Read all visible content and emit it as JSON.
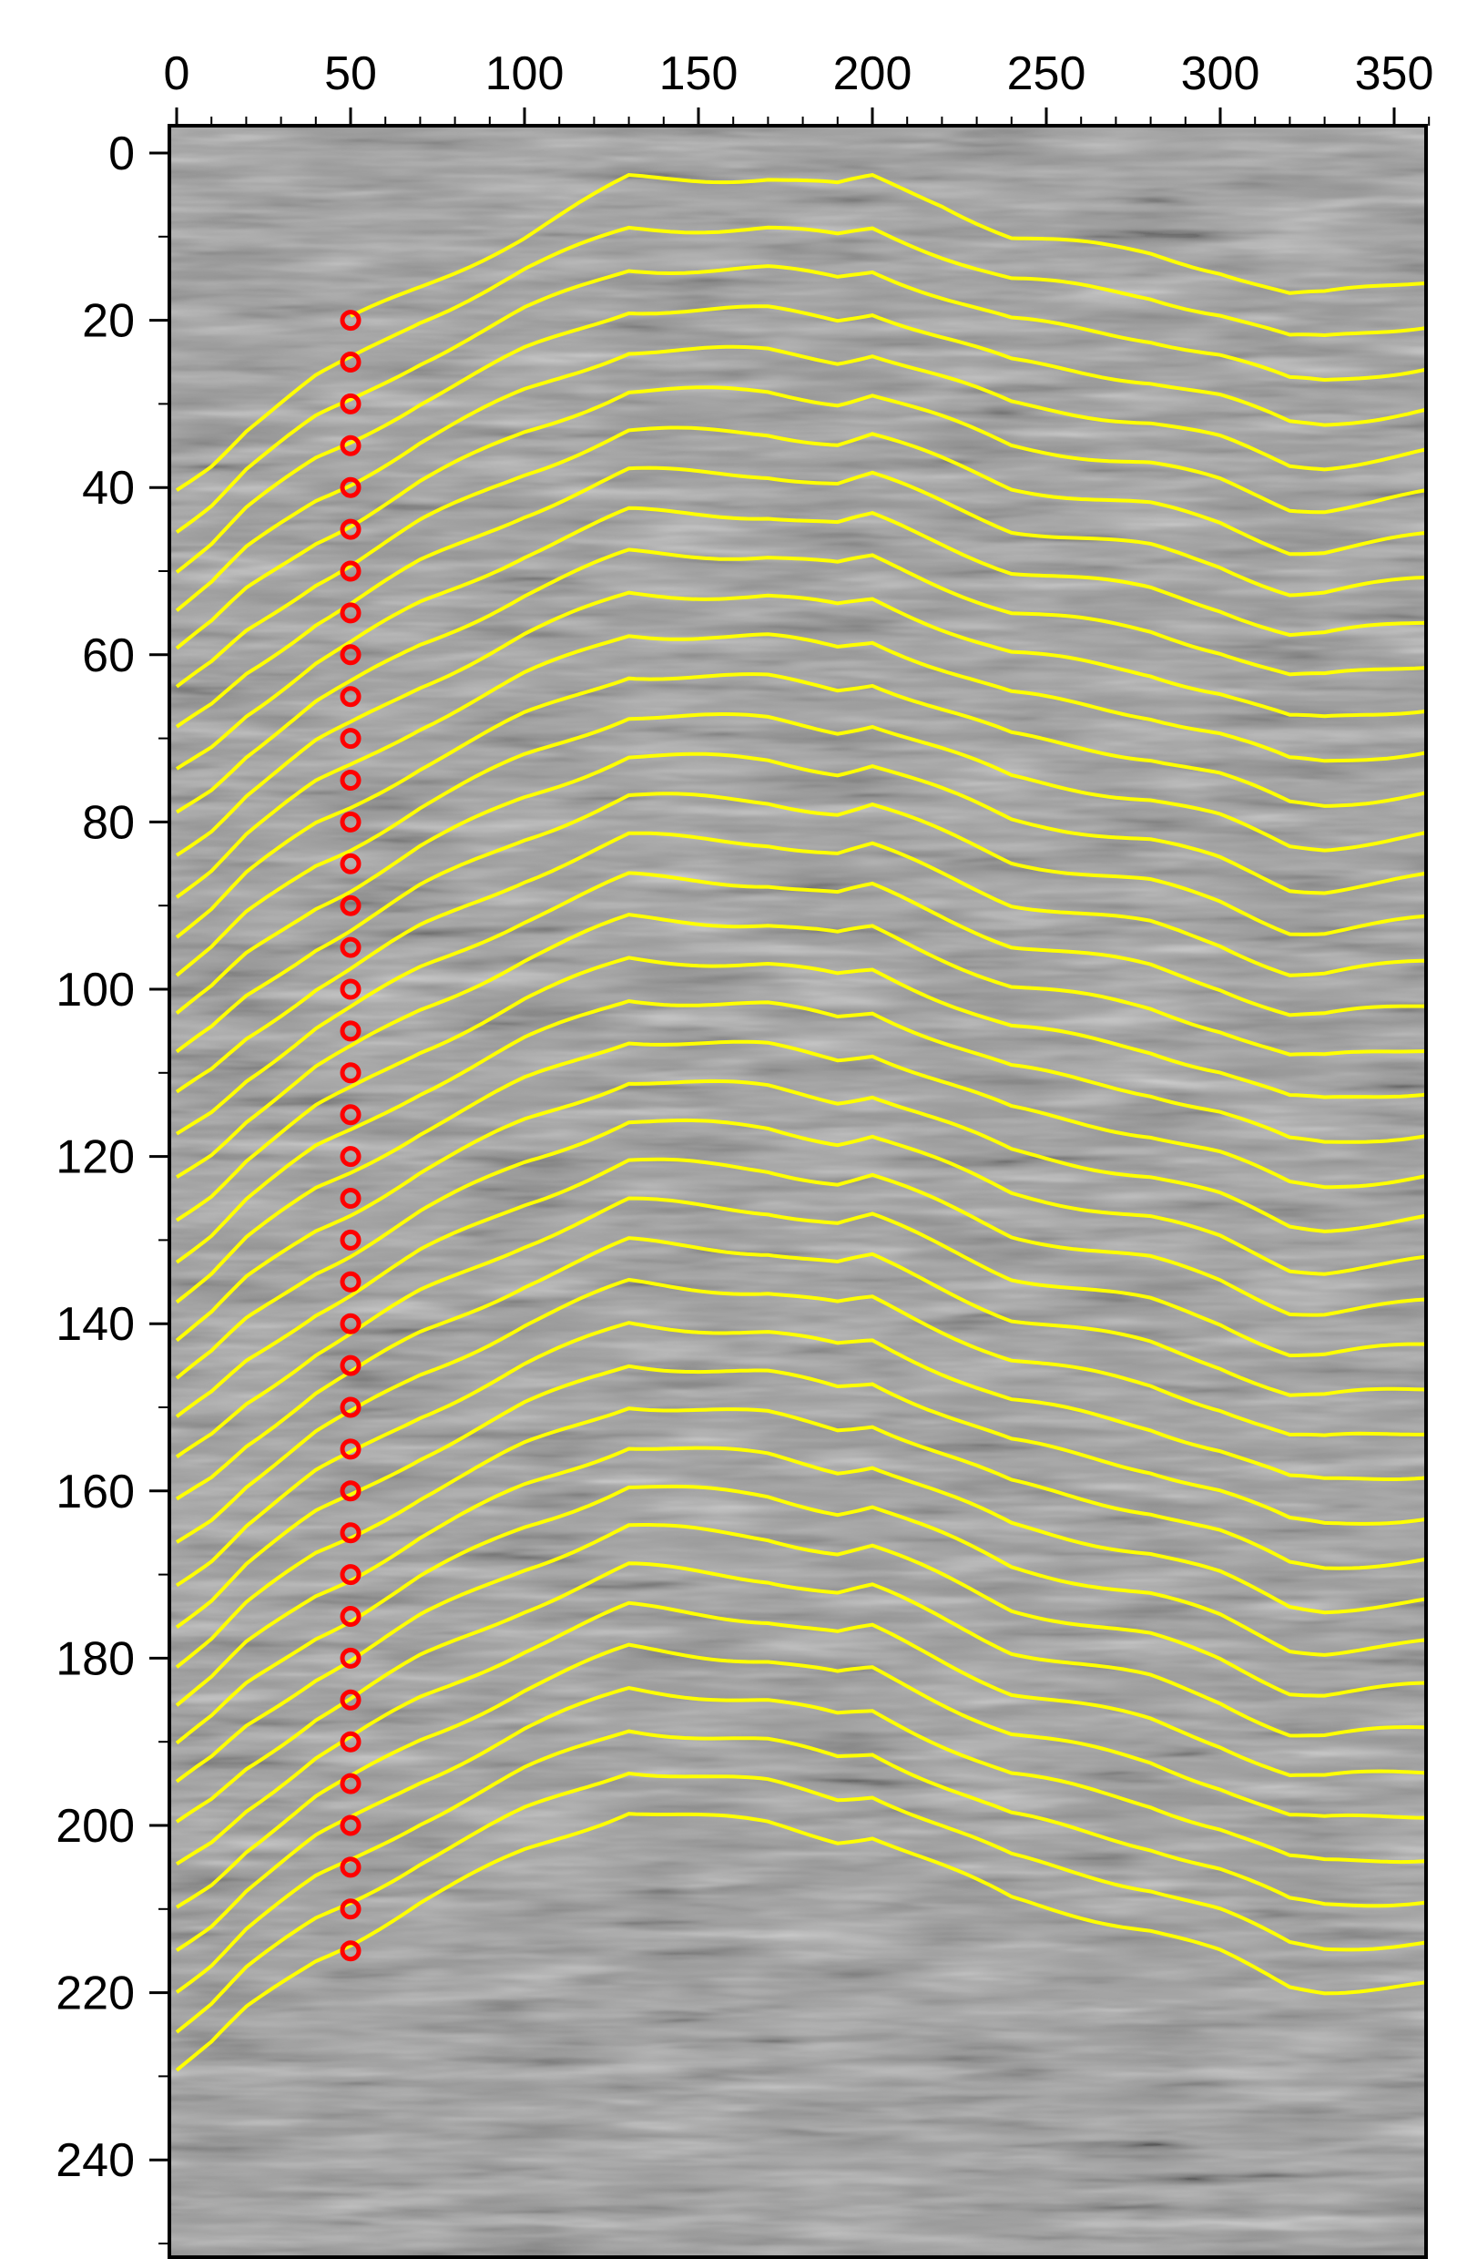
{
  "chart_data": {
    "type": "line",
    "title": "",
    "xlabel": "",
    "ylabel": "",
    "xlim": [
      0,
      362
    ],
    "ylim": [
      250,
      -3
    ],
    "x_ticks": [
      0,
      50,
      100,
      150,
      200,
      250,
      300,
      350
    ],
    "x_tick_labels": [
      "0",
      "50",
      "100",
      "150",
      "200",
      "250",
      "300",
      "350"
    ],
    "y_ticks": [
      0,
      20,
      40,
      60,
      80,
      100,
      120,
      140,
      160,
      180,
      200,
      220,
      240
    ],
    "y_tick_labels": [
      "0",
      "20",
      "40",
      "60",
      "80",
      "100",
      "120",
      "140",
      "160",
      "180",
      "200",
      "220",
      "240"
    ],
    "x_minor_step": 10,
    "y_minor_step": 10,
    "background": "grayscale seismic amplitude image",
    "series": [
      {
        "kind": "horizon",
        "x": [
          50,
          70,
          100,
          130,
          150,
          170,
          190,
          200,
          220,
          240,
          260,
          280,
          300,
          320,
          330,
          362
        ],
        "y": [
          20,
          16,
          10,
          3,
          3,
          3,
          4,
          3,
          6,
          10,
          11,
          12,
          14,
          17,
          17,
          15
        ]
      },
      {
        "kind": "horizon",
        "x": [
          0,
          10,
          20,
          30,
          40,
          50,
          70,
          100,
          130,
          150,
          170,
          190,
          200,
          220,
          240,
          260,
          280,
          300,
          320,
          330,
          362
        ],
        "y": [
          40,
          37,
          33,
          30,
          27,
          24.8,
          20,
          14,
          9,
          9,
          9,
          10,
          9,
          12,
          15,
          16,
          17,
          19,
          22,
          22,
          20
        ]
      },
      {
        "kind": "horizon",
        "start": 0,
        "x_y0": 44,
        "shift": 4.85
      },
      {
        "kind": "reference_points",
        "x": 50,
        "y_start": 20,
        "y_step": 5,
        "count": 40
      }
    ],
    "horizon_count": 41,
    "colors": {
      "horizon": "#ffff00",
      "points": "#ff0000",
      "axes": "#000000",
      "background": "#ffffff"
    }
  }
}
